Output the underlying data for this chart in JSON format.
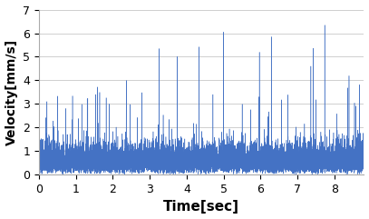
{
  "title": "",
  "xlabel": "Time[sec]",
  "ylabel": "Velocity[mm/s]",
  "xlim": [
    0,
    8.8
  ],
  "ylim": [
    0,
    7
  ],
  "xticks": [
    0,
    1,
    2,
    3,
    4,
    5,
    6,
    7,
    8
  ],
  "yticks": [
    0,
    1,
    2,
    3,
    4,
    5,
    6,
    7
  ],
  "line_color": "#4472C4",
  "line_width": 0.35,
  "background_color": "#ffffff",
  "grid_color": "#c8c8c8",
  "n_points": 8800,
  "base_mean": 1.3,
  "base_std": 0.55,
  "spike_probability": 0.005,
  "spike_mean": 2.5,
  "spike_std": 0.5,
  "xlabel_fontsize": 11,
  "ylabel_fontsize": 10,
  "tick_fontsize": 9,
  "seed": 12345
}
